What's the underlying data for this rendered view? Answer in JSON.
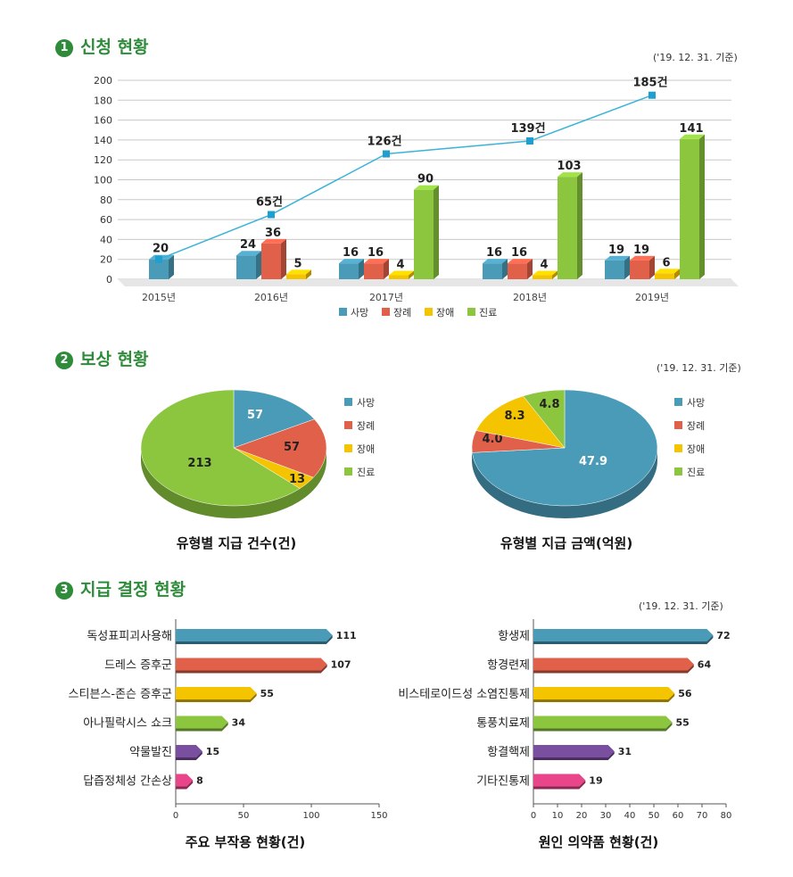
{
  "sections": [
    {
      "num": "1",
      "title": "신청 현황",
      "asof": "('19. 12. 31. 기준)"
    },
    {
      "num": "2",
      "title": "보상 현황",
      "asof": "('19. 12. 31. 기준)"
    },
    {
      "num": "3",
      "title": "지급 결정 현황",
      "asof": "('19. 12. 31. 기준)"
    }
  ],
  "colors": {
    "사망": "#4a9bb8",
    "장례": "#e0604a",
    "장애": "#f5c400",
    "진료": "#8cc63e",
    "purple": "#7b4fa0",
    "pink": "#e8458b",
    "line": "#3bb3d6",
    "title": "#2e8b3a"
  },
  "chart_data": [
    {
      "type": "bar",
      "title": "",
      "categories": [
        "2015년",
        "2016년",
        "2017년",
        "2018년",
        "2019년"
      ],
      "series": [
        {
          "name": "사망",
          "values": [
            20,
            24,
            16,
            16,
            19
          ]
        },
        {
          "name": "장례",
          "values": [
            null,
            36,
            16,
            16,
            19
          ]
        },
        {
          "name": "장애",
          "values": [
            null,
            5,
            4,
            4,
            6
          ]
        },
        {
          "name": "진료",
          "values": [
            null,
            null,
            90,
            103,
            141
          ]
        }
      ],
      "totals": {
        "values": [
          20,
          65,
          126,
          139,
          185
        ],
        "labels": [
          "",
          "65건",
          "126건",
          "139건",
          "185건"
        ]
      },
      "ylim": [
        0,
        200
      ],
      "yticks": [
        0,
        20,
        40,
        60,
        80,
        100,
        120,
        140,
        160,
        180,
        200
      ],
      "legend": [
        "사망",
        "장례",
        "장애",
        "진료"
      ],
      "legend_position": "bottom",
      "grid": true
    },
    {
      "type": "pie",
      "title": "유형별 지급 건수(건)",
      "labels": [
        "사망",
        "장례",
        "장애",
        "진료"
      ],
      "values": [
        57,
        57,
        13,
        213
      ],
      "value_labels": [
        "57",
        "57",
        "13",
        "213"
      ],
      "legend_position": "right"
    },
    {
      "type": "pie",
      "title": "유형별 지급 금액(억원)",
      "labels": [
        "사망",
        "장례",
        "장애",
        "진료"
      ],
      "values": [
        47.9,
        4.0,
        8.3,
        4.8
      ],
      "value_labels": [
        "47.9",
        "4.0",
        "8.3",
        "4.8"
      ],
      "legend_position": "right"
    },
    {
      "type": "bar",
      "orientation": "horizontal",
      "title": "주요 부작용 현황(건)",
      "categories": [
        "독성표피괴사용해",
        "드레스 증후군",
        "스티븐스-존슨 증후군",
        "아나필락시스 쇼크",
        "약물발진",
        "답즙정체성 간손상"
      ],
      "values": [
        111,
        107,
        55,
        34,
        15,
        8
      ],
      "xlim": [
        0,
        150
      ],
      "xticks": [
        0,
        50,
        100,
        150
      ]
    },
    {
      "type": "bar",
      "orientation": "horizontal",
      "title": "원인 의약품 현황(건)",
      "categories": [
        "항생제",
        "항경련제",
        "비스테로이드성 소염진통제",
        "통풍치료제",
        "항결핵제",
        "기타진통제"
      ],
      "values": [
        72,
        64,
        56,
        55,
        31,
        19
      ],
      "xlim": [
        0,
        80
      ],
      "xticks": [
        0,
        10,
        20,
        30,
        40,
        50,
        60,
        70,
        80
      ]
    }
  ]
}
